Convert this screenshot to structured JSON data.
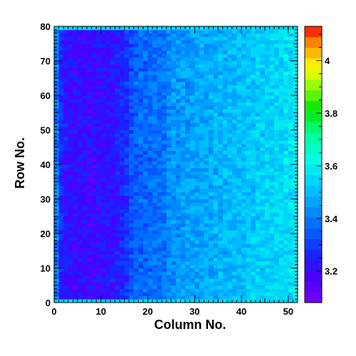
{
  "chart_data": {
    "type": "heatmap",
    "title": "",
    "xlabel": "Column No.",
    "ylabel": "Row No.",
    "xlim": [
      0,
      52
    ],
    "ylim": [
      0,
      80
    ],
    "x_ticks": [
      "0",
      "10",
      "20",
      "30",
      "40",
      "50"
    ],
    "y_ticks": [
      "0",
      "10",
      "20",
      "30",
      "40",
      "50",
      "60",
      "70",
      "80"
    ],
    "z_range": [
      3.08,
      4.13
    ],
    "z_ticks": [
      "3.2",
      "3.4",
      "3.6",
      "3.8",
      "4"
    ],
    "grid": false,
    "n_columns": 52,
    "n_rows": 80,
    "column_mean_values": [
      3.4,
      3.26,
      3.23,
      3.22,
      3.21,
      3.22,
      3.21,
      3.2,
      3.2,
      3.21,
      3.22,
      3.22,
      3.23,
      3.24,
      3.26,
      3.28,
      3.33,
      3.35,
      3.36,
      3.37,
      3.37,
      3.38,
      3.38,
      3.39,
      3.43,
      3.44,
      3.44,
      3.45,
      3.45,
      3.46,
      3.46,
      3.47,
      3.47,
      3.48,
      3.48,
      3.49,
      3.49,
      3.5,
      3.5,
      3.51,
      3.51,
      3.52,
      3.52,
      3.53,
      3.53,
      3.54,
      3.54,
      3.55,
      3.55,
      3.56,
      3.56,
      3.58
    ],
    "row_end_values": {
      "first_row": 3.55,
      "last_row": 3.55
    },
    "note_texture": "cell-to-cell noise of about ±0.05 around the column means"
  }
}
